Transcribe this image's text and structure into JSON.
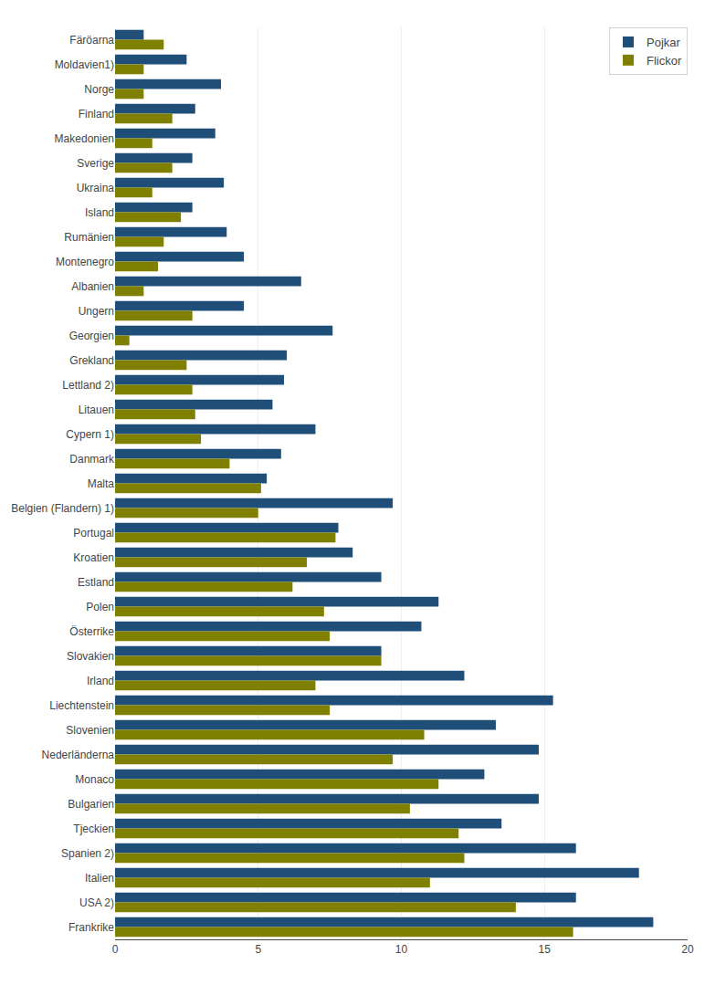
{
  "chart_data": {
    "type": "bar",
    "orientation": "horizontal",
    "categories": [
      "Färöarna",
      "Moldavien1)",
      "Norge",
      "Finland",
      "Makedonien",
      "Sverige",
      "Ukraina",
      "Island",
      "Rumänien",
      "Montenegro",
      "Albanien",
      "Ungern",
      "Georgien",
      "Grekland",
      "Lettland 2)",
      "Litauen",
      "Cypern 1)",
      "Danmark",
      "Malta",
      "Belgien (Flandern) 1)",
      "Portugal",
      "Kroatien",
      "Estland",
      "Polen",
      "Österrike",
      "Slovakien",
      "Irland",
      "Liechtenstein",
      "Slovenien",
      "Nederländerna",
      "Monaco",
      "Bulgarien",
      "Tjeckien",
      "Spanien 2)",
      "Italien",
      "USA 2)",
      "Frankrike"
    ],
    "series": [
      {
        "name": "Pojkar",
        "color": "#1F4E79",
        "values": [
          1.0,
          2.5,
          3.7,
          2.8,
          3.5,
          2.7,
          3.8,
          2.7,
          3.9,
          4.5,
          6.5,
          4.5,
          7.6,
          6.0,
          5.9,
          5.5,
          7.0,
          5.8,
          5.3,
          9.7,
          7.8,
          8.3,
          9.3,
          11.3,
          10.7,
          9.3,
          12.2,
          15.3,
          13.3,
          14.8,
          12.9,
          14.8,
          13.5,
          16.1,
          18.3,
          16.1,
          18.8
        ]
      },
      {
        "name": "Flickor",
        "color": "#808000",
        "values": [
          1.7,
          1.0,
          1.0,
          2.0,
          1.3,
          2.0,
          1.3,
          2.3,
          1.7,
          1.5,
          1.0,
          2.7,
          0.5,
          2.5,
          2.7,
          2.8,
          3.0,
          4.0,
          5.1,
          5.0,
          7.7,
          6.7,
          6.2,
          7.3,
          7.5,
          9.3,
          7.0,
          7.5,
          10.8,
          9.7,
          11.3,
          10.3,
          12.0,
          12.2,
          11.0,
          14.0,
          16.0
        ]
      }
    ],
    "xlim": [
      0,
      20
    ],
    "xticks": [
      0,
      5,
      10,
      15,
      20
    ],
    "grid": true,
    "legend": "upper right"
  }
}
